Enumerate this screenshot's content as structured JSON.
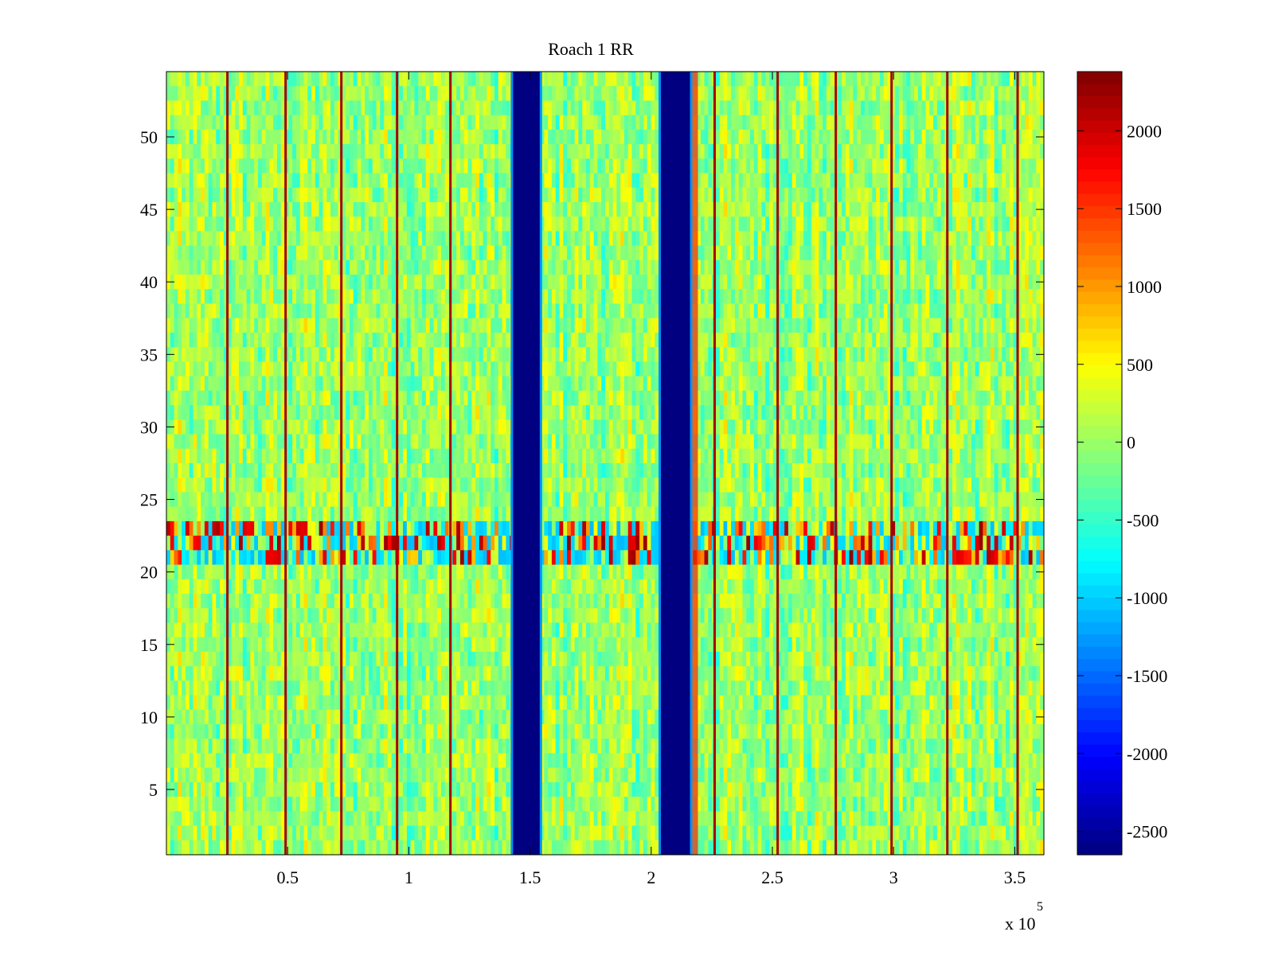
{
  "chart_data": {
    "type": "heatmap",
    "title": "Roach 1 RR",
    "xlabel": "",
    "ylabel": "",
    "x_exponent_label": "x 10",
    "x_exponent": "5",
    "xlim": [
      0,
      3.62
    ],
    "ylim": [
      0.5,
      54.5
    ],
    "x_ticks": [
      0.5,
      1,
      1.5,
      2,
      2.5,
      3,
      3.5
    ],
    "x_tick_labels": [
      "0.5",
      "1",
      "1.5",
      "2",
      "2.5",
      "3",
      "3.5"
    ],
    "y_ticks": [
      5,
      10,
      15,
      20,
      25,
      30,
      35,
      40,
      45,
      50
    ],
    "y_tick_labels": [
      "5",
      "10",
      "15",
      "20",
      "25",
      "30",
      "35",
      "40",
      "45",
      "50"
    ],
    "rows": 54,
    "colorbar": {
      "colormap": "jet",
      "clim": [
        -2650,
        2380
      ],
      "ticks": [
        -2500,
        -2000,
        -1500,
        -1000,
        -500,
        0,
        500,
        1000,
        1500,
        2000
      ],
      "tick_labels": [
        "-2500",
        "-2000",
        "-1500",
        "-1000",
        "-500",
        "0",
        "500",
        "1000",
        "1500",
        "2000"
      ]
    },
    "background_level": 0,
    "blocked_bands": [
      {
        "x_start": 1.43,
        "x_end": 1.54,
        "value": -2650
      },
      {
        "x_start": 2.04,
        "x_end": 2.16,
        "value": -2650
      }
    ],
    "hot_column_positions": [
      0.25,
      0.49,
      0.72,
      0.95,
      1.17,
      2.26,
      2.52,
      2.76,
      2.99,
      3.22,
      3.51
    ],
    "hot_column_value": 2200,
    "interference_rows": [
      21,
      22,
      23
    ]
  }
}
